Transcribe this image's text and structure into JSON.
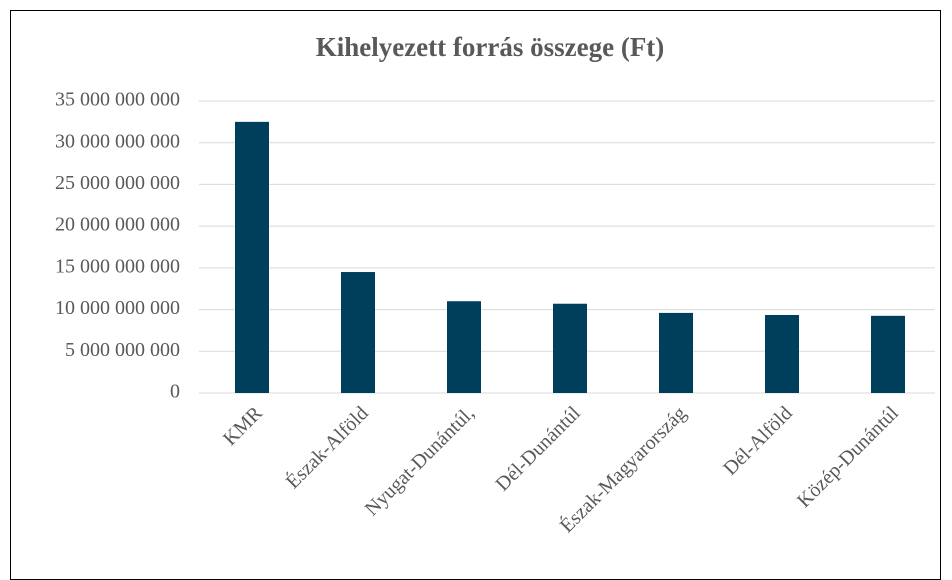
{
  "chart_data": {
    "type": "bar",
    "title": "Kihelyezett forrás összege (Ft)",
    "categories": [
      "KMR",
      "Észak-Alföld",
      "Nyugat-Dunántúl,",
      "Dél-Dunántúl",
      "Észak-Magyarország",
      "Dél-Alföld",
      "Közép-Dunántúl"
    ],
    "values": [
      32500000000,
      14500000000,
      11000000000,
      10700000000,
      9600000000,
      9350000000,
      9250000000
    ],
    "color": "#003f5c",
    "ylim": [
      0,
      35000000000
    ],
    "yticks": [
      0,
      {
        "value": 5000000000,
        "label": "5 000 000 000"
      },
      {
        "value": 10000000000,
        "label": "10 000 000 000"
      },
      {
        "value": 15000000000,
        "label": "15 000 000 000"
      },
      {
        "value": 20000000000,
        "label": "20 000 000 000"
      },
      {
        "value": 25000000000,
        "label": "25 000 000 000"
      },
      {
        "value": 30000000000,
        "label": "30 000 000 000"
      },
      {
        "value": 35000000000,
        "label": "35 000 000 000"
      }
    ],
    "grid": true
  }
}
